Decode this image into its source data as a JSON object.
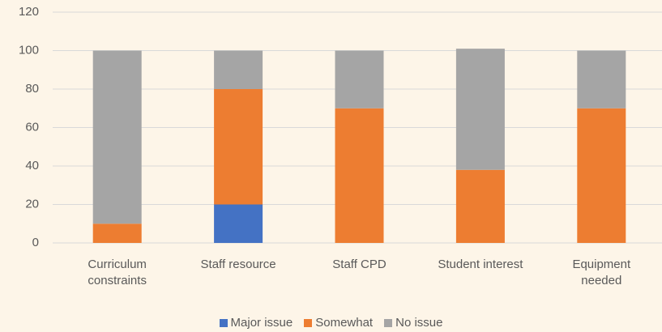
{
  "chart_data": {
    "type": "stacked_bar",
    "categories": [
      "Curriculum constraints",
      "Staff resource",
      "Staff CPD",
      "Student interest",
      "Equipment needed"
    ],
    "series": [
      {
        "name": "Major issue",
        "color": "#4472c4",
        "values": [
          0,
          20,
          0,
          0,
          0
        ]
      },
      {
        "name": "Somewhat",
        "color": "#ed7d31",
        "values": [
          10,
          60,
          70,
          38,
          70
        ]
      },
      {
        "name": "No issue",
        "color": "#a5a5a5",
        "values": [
          90,
          20,
          30,
          63,
          30
        ]
      }
    ],
    "ylim": [
      0,
      120
    ],
    "yticks": [
      0,
      20,
      40,
      60,
      80,
      100,
      120
    ],
    "grid": true,
    "legend": "bottom"
  }
}
